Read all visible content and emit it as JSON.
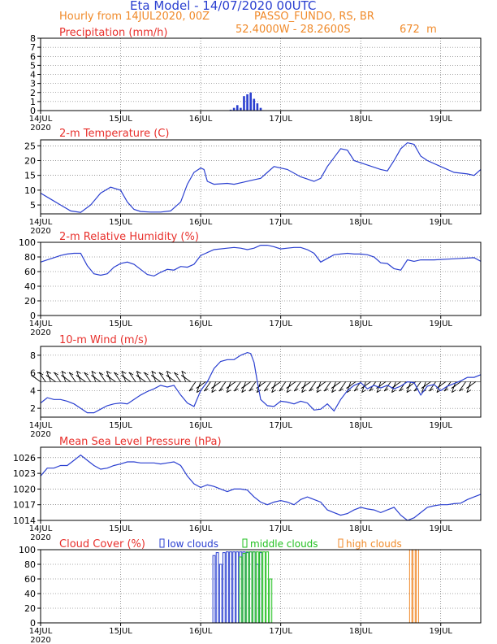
{
  "header": {
    "title": "Eta Model - 14/07/2020 00UTC",
    "subtitle": "Hourly from 14JUL2020, 00Z",
    "location": "PASSO_FUNDO, RS, BR",
    "coords": "52.4000W - 28.2600S",
    "elevation": "672  m"
  },
  "colors": {
    "title": "#2a3fd0",
    "orange": "#f08a2a",
    "red": "#e8302c",
    "series_blue": "#2a3fd0",
    "green": "#22c020",
    "grid": "#555555"
  },
  "x_axis": {
    "day_labels": [
      "14JUL",
      "15JUL",
      "16JUL",
      "17JUL",
      "18JUL",
      "19JUL"
    ],
    "year_label": "2020",
    "x_range_hours": [
      0,
      132
    ]
  },
  "chart_data": [
    {
      "type": "bar",
      "title": "Precipitation (mm/h)",
      "ylim": [
        0,
        8
      ],
      "yticks": [
        "0",
        "1",
        "2",
        "3",
        "4",
        "5",
        "6",
        "7",
        "8"
      ],
      "x_hours": [
        57,
        58,
        59,
        60,
        61,
        62,
        63,
        64,
        65,
        66
      ],
      "values": [
        0.1,
        0.3,
        0.6,
        0.3,
        1.6,
        1.8,
        2.0,
        1.3,
        0.8,
        0.3
      ]
    },
    {
      "type": "line",
      "title": "2-m Temperature (C)",
      "ylim": [
        2,
        27
      ],
      "yticks": [
        "5",
        "10",
        "15",
        "20",
        "25"
      ],
      "points": [
        [
          0,
          9
        ],
        [
          3,
          7
        ],
        [
          6,
          5
        ],
        [
          9,
          3
        ],
        [
          12,
          2.5
        ],
        [
          15,
          5
        ],
        [
          18,
          9
        ],
        [
          21,
          11
        ],
        [
          24,
          10
        ],
        [
          26,
          6
        ],
        [
          28,
          3.5
        ],
        [
          30,
          2.8
        ],
        [
          33,
          2.6
        ],
        [
          36,
          2.6
        ],
        [
          39,
          3
        ],
        [
          42,
          6
        ],
        [
          44,
          12
        ],
        [
          46,
          16
        ],
        [
          48,
          17.5
        ],
        [
          49,
          17
        ],
        [
          50,
          13
        ],
        [
          52,
          12
        ],
        [
          56,
          12.3
        ],
        [
          58,
          12
        ],
        [
          60,
          12.5
        ],
        [
          64,
          13.5
        ],
        [
          66,
          14
        ],
        [
          68,
          16
        ],
        [
          70,
          18
        ],
        [
          74,
          17
        ],
        [
          78,
          14.5
        ],
        [
          82,
          13
        ],
        [
          84,
          14
        ],
        [
          86,
          18
        ],
        [
          88,
          21
        ],
        [
          90,
          24
        ],
        [
          92,
          23.5
        ],
        [
          94,
          20
        ],
        [
          98,
          18.5
        ],
        [
          102,
          17
        ],
        [
          104,
          16.5
        ],
        [
          106,
          20
        ],
        [
          108,
          24
        ],
        [
          110,
          26
        ],
        [
          112,
          25.5
        ],
        [
          114,
          21.5
        ],
        [
          116,
          20
        ],
        [
          120,
          18
        ],
        [
          124,
          16
        ],
        [
          128,
          15.5
        ],
        [
          130,
          15
        ],
        [
          132,
          17
        ]
      ]
    },
    {
      "type": "line",
      "title": "2-m Relative Humidity (%)",
      "ylim": [
        0,
        100
      ],
      "yticks": [
        "0",
        "20",
        "40",
        "60",
        "80",
        "100"
      ],
      "points": [
        [
          0,
          73
        ],
        [
          2,
          76
        ],
        [
          4,
          79
        ],
        [
          6,
          82
        ],
        [
          8,
          84
        ],
        [
          10,
          85
        ],
        [
          12,
          85
        ],
        [
          14,
          68
        ],
        [
          16,
          57
        ],
        [
          18,
          55
        ],
        [
          20,
          57
        ],
        [
          22,
          66
        ],
        [
          24,
          71
        ],
        [
          26,
          73
        ],
        [
          28,
          70
        ],
        [
          30,
          63
        ],
        [
          32,
          56
        ],
        [
          34,
          54
        ],
        [
          36,
          59
        ],
        [
          38,
          63
        ],
        [
          40,
          62
        ],
        [
          42,
          67
        ],
        [
          44,
          66
        ],
        [
          46,
          70
        ],
        [
          48,
          82
        ],
        [
          50,
          86
        ],
        [
          52,
          90
        ],
        [
          56,
          92
        ],
        [
          58,
          93
        ],
        [
          60,
          92
        ],
        [
          62,
          90
        ],
        [
          64,
          92
        ],
        [
          66,
          96
        ],
        [
          68,
          96
        ],
        [
          70,
          94
        ],
        [
          72,
          91
        ],
        [
          74,
          92
        ],
        [
          76,
          93
        ],
        [
          78,
          93
        ],
        [
          80,
          90
        ],
        [
          82,
          85
        ],
        [
          84,
          73
        ],
        [
          86,
          78
        ],
        [
          88,
          83
        ],
        [
          90,
          84
        ],
        [
          92,
          85
        ],
        [
          94,
          84
        ],
        [
          96,
          84
        ],
        [
          98,
          83
        ],
        [
          100,
          80
        ],
        [
          102,
          72
        ],
        [
          104,
          71
        ],
        [
          106,
          64
        ],
        [
          108,
          62
        ],
        [
          110,
          76
        ],
        [
          112,
          74
        ],
        [
          114,
          76
        ],
        [
          118,
          76
        ],
        [
          122,
          77
        ],
        [
          126,
          78
        ],
        [
          130,
          79
        ],
        [
          132,
          74
        ]
      ]
    },
    {
      "type": "line",
      "title": "10-m Wind (m/s)",
      "ylim": [
        1,
        9
      ],
      "yticks": [
        "2",
        "4",
        "6",
        "8"
      ],
      "baseline": 5,
      "points": [
        [
          0,
          2.6
        ],
        [
          2,
          3.2
        ],
        [
          4,
          3
        ],
        [
          6,
          3
        ],
        [
          8,
          2.8
        ],
        [
          10,
          2.5
        ],
        [
          12,
          2
        ],
        [
          14,
          1.5
        ],
        [
          16,
          1.5
        ],
        [
          18,
          1.9
        ],
        [
          20,
          2.3
        ],
        [
          22,
          2.5
        ],
        [
          24,
          2.6
        ],
        [
          26,
          2.5
        ],
        [
          28,
          3
        ],
        [
          30,
          3.5
        ],
        [
          32,
          3.9
        ],
        [
          34,
          4.2
        ],
        [
          36,
          4.6
        ],
        [
          38,
          4.4
        ],
        [
          40,
          4.6
        ],
        [
          42,
          3.5
        ],
        [
          44,
          2.6
        ],
        [
          46,
          2.2
        ],
        [
          48,
          4
        ],
        [
          50,
          5
        ],
        [
          52,
          6.5
        ],
        [
          54,
          7.3
        ],
        [
          56,
          7.5
        ],
        [
          58,
          7.5
        ],
        [
          60,
          8
        ],
        [
          62,
          8.3
        ],
        [
          63,
          8.2
        ],
        [
          64,
          7.2
        ],
        [
          65,
          5
        ],
        [
          66,
          3
        ],
        [
          68,
          2.3
        ],
        [
          70,
          2.2
        ],
        [
          72,
          2.8
        ],
        [
          74,
          2.7
        ],
        [
          76,
          2.5
        ],
        [
          78,
          2.8
        ],
        [
          80,
          2.6
        ],
        [
          82,
          1.8
        ],
        [
          84,
          1.9
        ],
        [
          86,
          2.5
        ],
        [
          88,
          1.7
        ],
        [
          90,
          3
        ],
        [
          92,
          4
        ],
        [
          94,
          4.6
        ],
        [
          96,
          4.9
        ],
        [
          98,
          4.2
        ],
        [
          100,
          4.6
        ],
        [
          102,
          4.3
        ],
        [
          104,
          4.6
        ],
        [
          106,
          4.2
        ],
        [
          108,
          4.5
        ],
        [
          110,
          5
        ],
        [
          112,
          4.9
        ],
        [
          114,
          3.5
        ],
        [
          116,
          4.5
        ],
        [
          118,
          4.7
        ],
        [
          120,
          4
        ],
        [
          122,
          4.5
        ],
        [
          124,
          4.8
        ],
        [
          126,
          5.1
        ],
        [
          128,
          5.5
        ],
        [
          130,
          5.5
        ],
        [
          132,
          5.8
        ]
      ],
      "barb_hours": [
        0,
        1.5,
        3,
        4.5,
        6,
        7.5,
        9,
        10.5,
        12,
        13.5,
        15,
        16.5,
        18,
        19.5,
        21,
        22.5,
        24,
        25.5,
        27,
        28.5,
        30,
        31.5,
        33,
        34.5,
        36,
        37.5,
        39,
        40.5,
        42,
        43.5,
        45,
        46.5,
        48,
        49.5,
        51,
        52.5,
        54,
        55.5,
        57,
        58.5,
        60,
        61.5,
        63,
        64.5,
        66,
        67.5,
        69,
        70.5,
        72,
        73.5,
        75,
        76.5,
        78,
        79.5,
        81,
        82.5,
        84,
        85.5,
        87,
        88.5,
        90,
        91.5,
        93,
        94.5,
        96,
        97.5,
        99,
        100.5,
        102,
        103.5,
        105,
        106.5,
        108,
        109.5,
        111,
        112.5,
        114,
        115.5,
        117,
        118.5,
        120,
        121.5,
        123,
        124.5,
        126,
        127.5,
        129,
        130.5
      ]
    },
    {
      "type": "line",
      "title": "Mean Sea Level Pressure (hPa)",
      "ylim": [
        1014,
        1028
      ],
      "yticks": [
        "1014",
        "1017",
        "1020",
        "1023",
        "1026"
      ],
      "points": [
        [
          0,
          1022.5
        ],
        [
          2,
          1024
        ],
        [
          4,
          1024
        ],
        [
          6,
          1024.5
        ],
        [
          8,
          1024.5
        ],
        [
          10,
          1025.5
        ],
        [
          12,
          1026.5
        ],
        [
          14,
          1025.5
        ],
        [
          16,
          1024.5
        ],
        [
          18,
          1023.8
        ],
        [
          20,
          1024
        ],
        [
          22,
          1024.5
        ],
        [
          24,
          1024.8
        ],
        [
          26,
          1025.2
        ],
        [
          28,
          1025.2
        ],
        [
          30,
          1025
        ],
        [
          32,
          1025
        ],
        [
          34,
          1025
        ],
        [
          36,
          1024.8
        ],
        [
          38,
          1025
        ],
        [
          40,
          1025.2
        ],
        [
          42,
          1024.5
        ],
        [
          44,
          1022.5
        ],
        [
          46,
          1021
        ],
        [
          48,
          1020.3
        ],
        [
          50,
          1020.8
        ],
        [
          52,
          1020.5
        ],
        [
          54,
          1020
        ],
        [
          56,
          1019.5
        ],
        [
          58,
          1020
        ],
        [
          60,
          1020
        ],
        [
          62,
          1019.8
        ],
        [
          64,
          1018.5
        ],
        [
          66,
          1017.5
        ],
        [
          68,
          1017
        ],
        [
          70,
          1017.5
        ],
        [
          72,
          1017.8
        ],
        [
          74,
          1017.5
        ],
        [
          76,
          1017
        ],
        [
          78,
          1018
        ],
        [
          80,
          1018.5
        ],
        [
          82,
          1018
        ],
        [
          84,
          1017.5
        ],
        [
          86,
          1016
        ],
        [
          88,
          1015.5
        ],
        [
          90,
          1015
        ],
        [
          92,
          1015.3
        ],
        [
          94,
          1016
        ],
        [
          96,
          1016.5
        ],
        [
          98,
          1016.2
        ],
        [
          100,
          1016
        ],
        [
          102,
          1015.5
        ],
        [
          104,
          1016
        ],
        [
          106,
          1016.5
        ],
        [
          108,
          1015
        ],
        [
          110,
          1014
        ],
        [
          112,
          1014.5
        ],
        [
          114,
          1015.5
        ],
        [
          116,
          1016.5
        ],
        [
          118,
          1016.8
        ],
        [
          120,
          1017
        ],
        [
          122,
          1017
        ],
        [
          124,
          1017.2
        ],
        [
          126,
          1017.3
        ],
        [
          128,
          1018
        ],
        [
          130,
          1018.5
        ],
        [
          132,
          1019
        ]
      ]
    },
    {
      "type": "bar",
      "title": "Cloud Cover (%)",
      "ylim": [
        0,
        100
      ],
      "yticks": [
        "0",
        "20",
        "40",
        "60",
        "80",
        "100"
      ],
      "legend": [
        "low clouds",
        "middle clouds",
        "high clouds"
      ],
      "series": [
        {
          "name": "low clouds",
          "x_hours": [
            52,
            53,
            54,
            55,
            56,
            57,
            58,
            59,
            60,
            61,
            62,
            63,
            64,
            65,
            66
          ],
          "values": [
            92,
            96,
            80,
            96,
            97,
            97,
            97,
            97,
            97,
            97,
            96,
            97,
            97,
            80,
            96
          ]
        },
        {
          "name": "middle clouds",
          "x_hours": [
            60,
            61,
            62,
            63,
            64,
            65,
            66,
            67,
            68,
            69
          ],
          "values": [
            90,
            95,
            97,
            97,
            97,
            97,
            97,
            97,
            97,
            60
          ]
        },
        {
          "name": "high clouds",
          "x_hours": [
            111,
            112,
            113
          ],
          "values": [
            100,
            100,
            100
          ]
        }
      ]
    }
  ]
}
